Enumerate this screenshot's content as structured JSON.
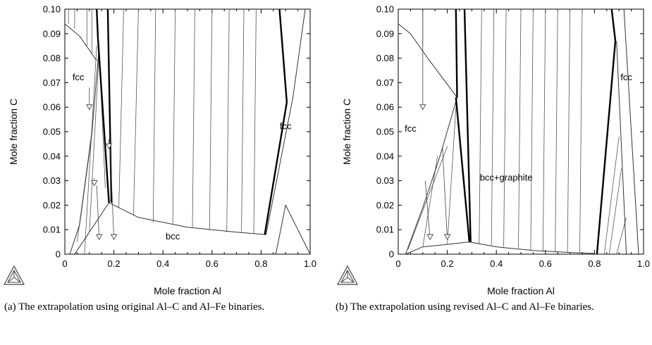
{
  "chart_data": [
    {
      "type": "line",
      "subtype": "isothermal phase diagram section",
      "xlabel": "Mole fraction Al",
      "ylabel": "Mole fraction C",
      "xlim": [
        0,
        1.0
      ],
      "ylim": [
        0,
        0.1
      ],
      "xticks": [
        "0",
        "0.2",
        "0.4",
        "0.6",
        "0.8",
        "1.0"
      ],
      "yticks": [
        "0",
        "0.01",
        "0.02",
        "0.03",
        "0.04",
        "0.05",
        "0.06",
        "0.07",
        "0.08",
        "0.09",
        "0.10"
      ],
      "grid": false,
      "region_labels": [
        {
          "text": "fcc",
          "x": 0.055,
          "y": 0.071
        },
        {
          "text": "fcc",
          "x": 0.9,
          "y": 0.051
        },
        {
          "text": "bcc",
          "x": 0.44,
          "y": 0.006
        }
      ],
      "phase_boundaries": [
        {
          "name": "fcc-graphite",
          "points": [
            [
              0,
              0.094
            ],
            [
              0.06,
              0.089
            ],
            [
              0.13,
              0.079
            ]
          ]
        },
        {
          "name": "fcc-bcc",
          "points": [
            [
              0.02,
              0
            ],
            [
              0.06,
              0.012
            ],
            [
              0.11,
              0.049
            ],
            [
              0.14,
              0.085
            ]
          ]
        },
        {
          "name": "bcc-graphite",
          "points": [
            [
              0.18,
              0.021
            ],
            [
              0.3,
              0.015
            ],
            [
              0.5,
              0.011
            ],
            [
              0.7,
              0.009
            ],
            [
              0.82,
              0.008
            ]
          ]
        },
        {
          "name": "bcc-lower",
          "points": [
            [
              0.04,
              0
            ],
            [
              0.1,
              0.009
            ],
            [
              0.18,
              0.021
            ]
          ]
        },
        {
          "name": "fcc-right",
          "points": [
            [
              0.82,
              0.008
            ],
            [
              0.93,
              0.064
            ],
            [
              0.98,
              0.1
            ]
          ]
        },
        {
          "name": "fcc-right-lower",
          "points": [
            [
              0.86,
              0
            ],
            [
              0.9,
              0.02
            ],
            [
              1.0,
              0
            ]
          ]
        }
      ],
      "three_phase_edges": [
        {
          "points": [
            [
              0.13,
              0.1
            ],
            [
              0.135,
              0.088
            ],
            [
              0.18,
              0.021
            ]
          ]
        },
        {
          "points": [
            [
              0.175,
              0.1
            ],
            [
              0.19,
              0.021
            ]
          ]
        },
        {
          "points": [
            [
              0.815,
              0.008
            ],
            [
              0.905,
              0.062
            ]
          ]
        },
        {
          "points": [
            [
              0.875,
              0.1
            ],
            [
              0.905,
              0.062
            ]
          ]
        }
      ],
      "tie_lines": [
        [
          [
            0.24,
            0.1
          ],
          [
            0.22,
            0.019
          ]
        ],
        [
          [
            0.3,
            0.1
          ],
          [
            0.28,
            0.016
          ]
        ],
        [
          [
            0.37,
            0.1
          ],
          [
            0.36,
            0.013
          ]
        ],
        [
          [
            0.45,
            0.1
          ],
          [
            0.44,
            0.012
          ]
        ],
        [
          [
            0.53,
            0.1
          ],
          [
            0.52,
            0.011
          ]
        ],
        [
          [
            0.6,
            0.1
          ],
          [
            0.59,
            0.01
          ]
        ],
        [
          [
            0.67,
            0.1
          ],
          [
            0.66,
            0.009
          ]
        ],
        [
          [
            0.73,
            0.1
          ],
          [
            0.72,
            0.009
          ]
        ],
        [
          [
            0.78,
            0.1
          ],
          [
            0.77,
            0.0085
          ]
        ],
        [
          [
            0.015,
            0.1
          ],
          [
            0.015,
            0.094
          ]
        ],
        [
          [
            0.04,
            0.1
          ],
          [
            0.04,
            0.092
          ]
        ],
        [
          [
            0.09,
            0.1
          ],
          [
            0.09,
            0.085
          ]
        ],
        [
          [
            0.11,
            0.1
          ],
          [
            0.11,
            0.082
          ]
        ],
        [
          [
            0.08,
            0
          ],
          [
            0.13,
            0.085
          ]
        ],
        [
          [
            0.1,
            0.009
          ],
          [
            0.14,
            0.083
          ]
        ],
        [
          [
            0.05,
            0.005
          ],
          [
            0.11,
            0.05
          ]
        ],
        [
          [
            0.14,
            0.083
          ],
          [
            0.165,
            0.027
          ]
        ]
      ],
      "arrows": [
        {
          "from": [
            0.1,
            0.068
          ],
          "to": [
            0.1,
            0.059
          ]
        },
        {
          "from": [
            0.12,
            0.031
          ],
          "to": [
            0.12,
            0.028
          ]
        },
        {
          "from": [
            0.13,
            0.028
          ],
          "to": [
            0.14,
            0.006
          ]
        },
        {
          "from": [
            0.18,
            0.047
          ],
          "to": [
            0.18,
            0.043
          ]
        },
        {
          "from": [
            0.185,
            0.043
          ],
          "to": [
            0.2,
            0.006
          ]
        }
      ]
    },
    {
      "type": "line",
      "subtype": "isothermal phase diagram section",
      "xlabel": "Mole fraction Al",
      "ylabel": "Mole fraction C",
      "xlim": [
        0,
        1.0
      ],
      "ylim": [
        0,
        0.1
      ],
      "xticks": [
        "0",
        "0.2",
        "0.4",
        "0.6",
        "0.8",
        "1.0"
      ],
      "yticks": [
        "0",
        "0.01",
        "0.02",
        "0.03",
        "0.04",
        "0.05",
        "0.06",
        "0.07",
        "0.08",
        "0.09",
        "0.10"
      ],
      "grid": false,
      "region_labels": [
        {
          "text": "fcc",
          "x": 0.05,
          "y": 0.05
        },
        {
          "text": "fcc",
          "x": 0.93,
          "y": 0.071
        },
        {
          "text": "bcc+graphite",
          "x": 0.44,
          "y": 0.03
        }
      ],
      "phase_boundaries": [
        {
          "name": "fcc-graphite",
          "points": [
            [
              0,
              0.094
            ],
            [
              0.05,
              0.09
            ],
            [
              0.12,
              0.08
            ],
            [
              0.18,
              0.072
            ],
            [
              0.24,
              0.064
            ]
          ]
        },
        {
          "name": "fcc-bcc",
          "points": [
            [
              0.03,
              0
            ],
            [
              0.1,
              0.019
            ],
            [
              0.17,
              0.04
            ],
            [
              0.24,
              0.064
            ]
          ]
        },
        {
          "name": "bcc-lower",
          "points": [
            [
              0.03,
              0
            ],
            [
              0.1,
              0.003
            ],
            [
              0.2,
              0.004
            ],
            [
              0.29,
              0.005
            ]
          ]
        },
        {
          "name": "bcc-graphite",
          "points": [
            [
              0.29,
              0.005
            ],
            [
              0.4,
              0.003
            ],
            [
              0.55,
              0.0015
            ],
            [
              0.7,
              0.0007
            ],
            [
              0.8,
              0.0003
            ]
          ]
        },
        {
          "name": "fcc-right",
          "points": [
            [
              0.89,
              0.087
            ],
            [
              0.93,
              0.0
            ]
          ]
        },
        {
          "name": "fcc-right-2",
          "points": [
            [
              0.92,
              0.1
            ],
            [
              0.98,
              0.0
            ]
          ]
        }
      ],
      "three_phase_edges": [
        {
          "points": [
            [
              0.235,
              0.1
            ],
            [
              0.24,
              0.064
            ]
          ]
        },
        {
          "points": [
            [
              0.235,
              0.064
            ],
            [
              0.29,
              0.005
            ]
          ]
        },
        {
          "points": [
            [
              0.27,
              0.1
            ],
            [
              0.295,
              0.005
            ]
          ]
        },
        {
          "points": [
            [
              0.81,
              0.0
            ],
            [
              0.885,
              0.087
            ]
          ]
        },
        {
          "points": [
            [
              0.87,
              0.1
            ],
            [
              0.885,
              0.087
            ]
          ]
        }
      ],
      "tie_lines": [
        [
          [
            0.34,
            0.1
          ],
          [
            0.33,
            0.004
          ]
        ],
        [
          [
            0.39,
            0.1
          ],
          [
            0.38,
            0.0035
          ]
        ],
        [
          [
            0.44,
            0.1
          ],
          [
            0.43,
            0.003
          ]
        ],
        [
          [
            0.5,
            0.1
          ],
          [
            0.49,
            0.0025
          ]
        ],
        [
          [
            0.55,
            0.1
          ],
          [
            0.54,
            0.0015
          ]
        ],
        [
          [
            0.6,
            0.1
          ],
          [
            0.59,
            0.001
          ]
        ],
        [
          [
            0.65,
            0.1
          ],
          [
            0.64,
            0.0008
          ]
        ],
        [
          [
            0.7,
            0.1
          ],
          [
            0.69,
            0.0006
          ]
        ],
        [
          [
            0.75,
            0.1
          ],
          [
            0.74,
            0.0004
          ]
        ],
        [
          [
            0.1,
            0.1
          ],
          [
            0.1,
            0.085
          ]
        ],
        [
          [
            0.04,
            0.002
          ],
          [
            0.2,
            0.044
          ]
        ],
        [
          [
            0.1,
            0.003
          ],
          [
            0.16,
            0.04
          ]
        ],
        [
          [
            0.2,
            0.004
          ],
          [
            0.235,
            0.06
          ]
        ],
        [
          [
            0.84,
            0.0
          ],
          [
            0.9,
            0.048
          ]
        ],
        [
          [
            0.86,
            0.0
          ],
          [
            0.91,
            0.035
          ]
        ],
        [
          [
            0.89,
            0.0
          ],
          [
            0.93,
            0.015
          ]
        ]
      ],
      "arrows": [
        {
          "from": [
            0.1,
            0.1
          ],
          "to": [
            0.1,
            0.059
          ]
        },
        {
          "from": [
            0.11,
            0.03
          ],
          "to": [
            0.13,
            0.006
          ]
        },
        {
          "from": [
            0.18,
            0.044
          ],
          "to": [
            0.2,
            0.006
          ]
        }
      ]
    }
  ],
  "captions": {
    "a": "(a) The extrapolation using original Al–C and Al–Fe binaries.",
    "b": "(b) The extrapolation using revised Al–C and Al–Fe binaries."
  }
}
